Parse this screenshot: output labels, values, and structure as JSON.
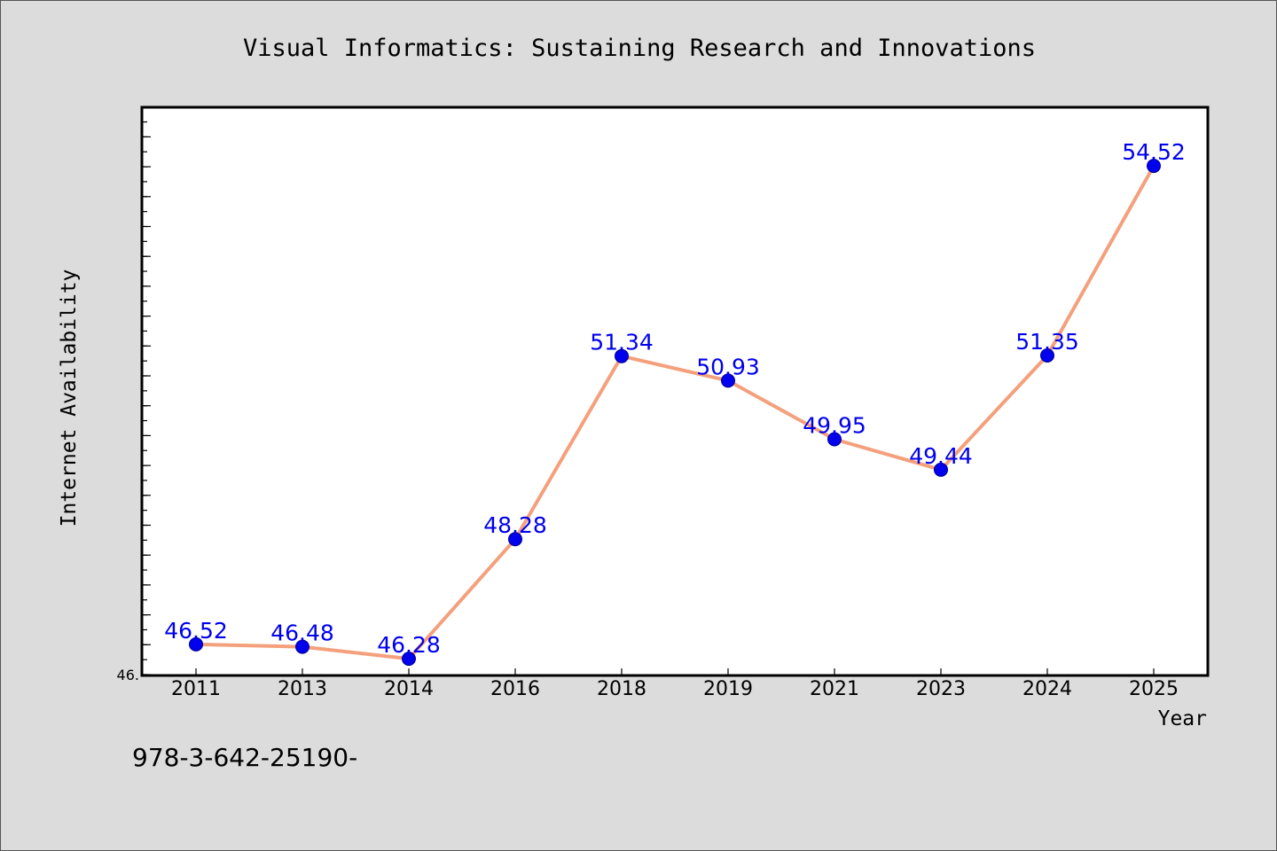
{
  "chart_data": {
    "type": "line",
    "title": "Visual Informatics: Sustaining Research and Innovations",
    "xlabel": "Year",
    "ylabel": "Internet Availability",
    "categories": [
      "2011",
      "2013",
      "2014",
      "2016",
      "2018",
      "2019",
      "2021",
      "2023",
      "2024",
      "2025"
    ],
    "series": [
      {
        "values": [
          46.52,
          46.48,
          46.28,
          48.28,
          51.34,
          50.93,
          49.95,
          49.44,
          51.35,
          54.52
        ],
        "labels": [
          "46.52",
          "46.48",
          "46.28",
          "48.28",
          "51.34",
          "50.93",
          "49.95",
          "49.44",
          "51.35",
          "54.52"
        ]
      }
    ],
    "ylim": [
      46.0,
      55.5
    ],
    "y_tick_labels": [
      "46."
    ],
    "grid": false,
    "legend": "none",
    "line_color": "#f4a07c",
    "marker_color": "#0000ee",
    "label_color": "#0000ee"
  },
  "footer": {
    "isbn_text": "978-3-642-25190-"
  }
}
